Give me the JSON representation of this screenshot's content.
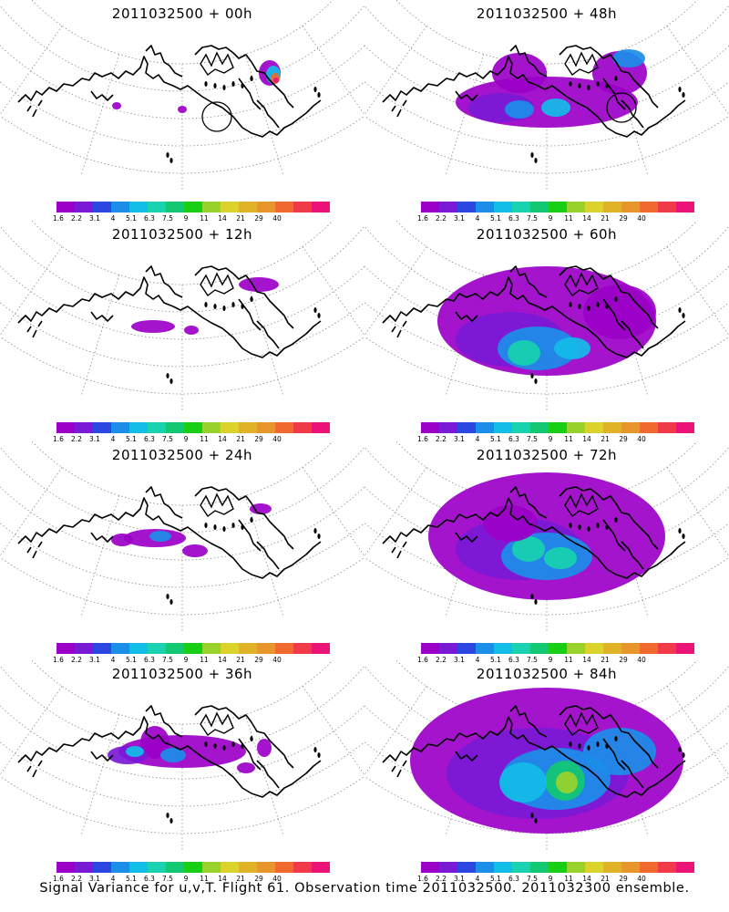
{
  "caption": "Signal Variance for u,v,T. Flight 61. Observation time 2011032500. 2011032300 ensemble.",
  "colorbar": {
    "labels": [
      "1.6",
      "2.2",
      "3.1",
      "4",
      "5.1",
      "6.3",
      "7.5",
      "9",
      "11",
      "14",
      "21",
      "29",
      "40"
    ],
    "colors": [
      "#9b00c8",
      "#7a1ad6",
      "#2c46e2",
      "#1a8ee8",
      "#12bde8",
      "#18d2b0",
      "#12c872",
      "#18cf18",
      "#9ad22c",
      "#dcd22c",
      "#e0b228",
      "#e6962a",
      "#f06a30",
      "#f03a4a",
      "#ec1378"
    ]
  },
  "colors": {
    "land_outline": "#000000",
    "graticule": "#8c8c8c"
  },
  "panels": [
    {
      "title": "2011032500 + 00h",
      "lead": 0
    },
    {
      "title": "2011032500 + 48h",
      "lead": 48
    },
    {
      "title": "2011032500 + 12h",
      "lead": 12
    },
    {
      "title": "2011032500 + 60h",
      "lead": 60
    },
    {
      "title": "2011032500 + 24h",
      "lead": 24
    },
    {
      "title": "2011032500 + 72h",
      "lead": 72
    },
    {
      "title": "2011032500 + 36h",
      "lead": 36
    },
    {
      "title": "2011032500 + 84h",
      "lead": 84
    }
  ]
}
